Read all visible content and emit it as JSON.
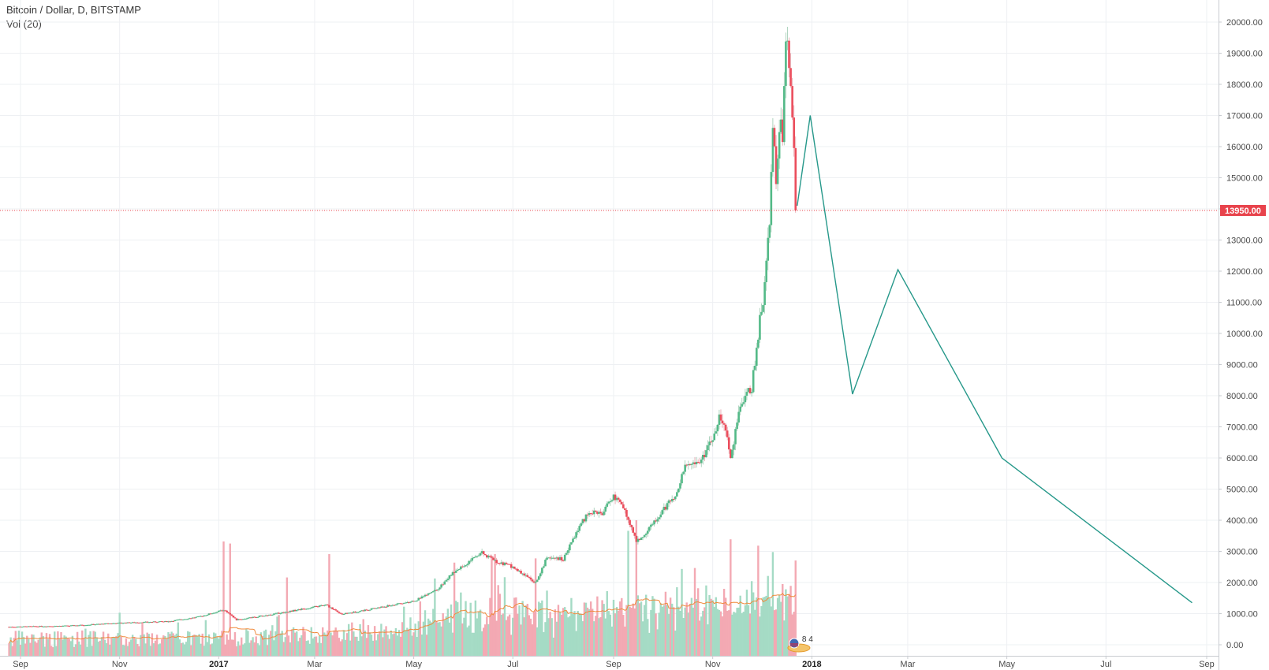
{
  "header": {
    "symbol_title": "Bitcoin / Dollar, D, BITSTAMP",
    "volume_label": "Vol (20)"
  },
  "event_badge": {
    "text": "8 4",
    "icon": "flag-icon"
  },
  "chart_data": {
    "type": "candlestick",
    "symbol": "Bitcoin / Dollar",
    "interval": "D",
    "exchange": "BITSTAMP",
    "price_axis": {
      "position": "right",
      "ticks": [
        0,
        1000,
        2000,
        3000,
        4000,
        5000,
        6000,
        7000,
        8000,
        9000,
        10000,
        11000,
        12000,
        13000,
        14000,
        15000,
        16000,
        17000,
        18000,
        19000,
        20000
      ],
      "tick_labels": [
        "0.00",
        "1000.00",
        "2000.00",
        "3000.00",
        "4000.00",
        "5000.00",
        "6000.00",
        "7000.00",
        "8000.00",
        "9000.00",
        "10000.00",
        "11000.00",
        "12000.00",
        "13000.00",
        "14000.00",
        "15000.00",
        "16000.00",
        "17000.00",
        "18000.00",
        "19000.00",
        "20000.00"
      ],
      "range": [
        -400,
        20400
      ]
    },
    "time_axis": {
      "tick_dates": [
        "2016-09-01",
        "2016-11-01",
        "2017-01-01",
        "2017-03-01",
        "2017-05-01",
        "2017-07-01",
        "2017-09-01",
        "2017-11-01",
        "2018-01-01",
        "2018-03-01",
        "2018-05-01",
        "2018-07-01",
        "2018-09-01"
      ],
      "tick_labels": [
        "Sep",
        "Nov",
        "2017",
        "Mar",
        "May",
        "Jul",
        "Sep",
        "Nov",
        "2018",
        "Mar",
        "May",
        "Jul",
        "Sep"
      ],
      "bold_labels": [
        "2017",
        "2018"
      ],
      "range": [
        "2016-08-23",
        "2018-09-01"
      ]
    },
    "grid": true,
    "current_price": {
      "value": 13950,
      "label": "13950.00",
      "color": "#e8434c"
    },
    "price_path": [
      [
        "2016-08-25",
        575
      ],
      [
        "2016-10-01",
        610
      ],
      [
        "2016-11-01",
        700
      ],
      [
        "2016-12-01",
        750
      ],
      [
        "2016-12-20",
        900
      ],
      [
        "2017-01-04",
        1120
      ],
      [
        "2017-01-12",
        800
      ],
      [
        "2017-02-01",
        960
      ],
      [
        "2017-02-25",
        1180
      ],
      [
        "2017-03-08",
        1280
      ],
      [
        "2017-03-18",
        980
      ],
      [
        "2017-04-10",
        1200
      ],
      [
        "2017-05-01",
        1400
      ],
      [
        "2017-05-15",
        1750
      ],
      [
        "2017-05-25",
        2300
      ],
      [
        "2017-06-05",
        2700
      ],
      [
        "2017-06-12",
        2950
      ],
      [
        "2017-06-20",
        2700
      ],
      [
        "2017-07-01",
        2500
      ],
      [
        "2017-07-15",
        2000
      ],
      [
        "2017-07-22",
        2800
      ],
      [
        "2017-08-01",
        2750
      ],
      [
        "2017-08-12",
        3900
      ],
      [
        "2017-08-18",
        4300
      ],
      [
        "2017-08-25",
        4200
      ],
      [
        "2017-09-01",
        4800
      ],
      [
        "2017-09-08",
        4300
      ],
      [
        "2017-09-15",
        3300
      ],
      [
        "2017-09-22",
        3700
      ],
      [
        "2017-10-01",
        4300
      ],
      [
        "2017-10-10",
        4900
      ],
      [
        "2017-10-15",
        5700
      ],
      [
        "2017-10-25",
        5900
      ],
      [
        "2017-11-01",
        6600
      ],
      [
        "2017-11-05",
        7300
      ],
      [
        "2017-11-10",
        6800
      ],
      [
        "2017-11-12",
        5900
      ],
      [
        "2017-11-18",
        7800
      ],
      [
        "2017-11-25",
        8200
      ],
      [
        "2017-11-29",
        10000
      ],
      [
        "2017-12-03",
        11500
      ],
      [
        "2017-12-06",
        13500
      ],
      [
        "2017-12-08",
        16500
      ],
      [
        "2017-12-10",
        15000
      ],
      [
        "2017-12-12",
        16800
      ],
      [
        "2017-12-14",
        16400
      ],
      [
        "2017-12-16",
        19100
      ],
      [
        "2017-12-17",
        19200
      ],
      [
        "2017-12-18",
        18900
      ],
      [
        "2017-12-19",
        17600
      ],
      [
        "2017-12-20",
        16700
      ],
      [
        "2017-12-21",
        15800
      ],
      [
        "2017-12-22",
        13950
      ]
    ],
    "projection_line": {
      "color": "#26988a",
      "points": [
        [
          "2017-12-23",
          14100
        ],
        [
          "2017-12-31",
          17000
        ],
        [
          "2018-01-26",
          8050
        ],
        [
          "2018-02-23",
          12050
        ],
        [
          "2018-04-28",
          6000
        ],
        [
          "2018-08-23",
          1350
        ]
      ]
    },
    "volume": {
      "indicator": "Vol (20)",
      "up_color": "#a5dbc5",
      "down_color": "#f3a9b3",
      "ma_color": "#f08a3c",
      "range": [
        0,
        2900
      ],
      "spikes": [
        [
          "2017-01-04",
          2700,
          "down"
        ],
        [
          "2017-01-08",
          2650,
          "down"
        ],
        [
          "2017-03-10",
          2400,
          "down"
        ],
        [
          "2017-02-12",
          1850,
          "down"
        ],
        [
          "2017-05-26",
          2200,
          "down"
        ],
        [
          "2017-06-20",
          2400,
          "down"
        ],
        [
          "2017-07-15",
          2300,
          "down"
        ],
        [
          "2017-09-15",
          3200,
          "down"
        ],
        [
          "2017-09-10",
          2950,
          "up"
        ],
        [
          "2017-11-12",
          2750,
          "down"
        ],
        [
          "2017-11-29",
          2600,
          "down"
        ],
        [
          "2017-12-08",
          2450,
          "up"
        ],
        [
          "2017-12-22",
          2250,
          "down"
        ]
      ]
    }
  }
}
